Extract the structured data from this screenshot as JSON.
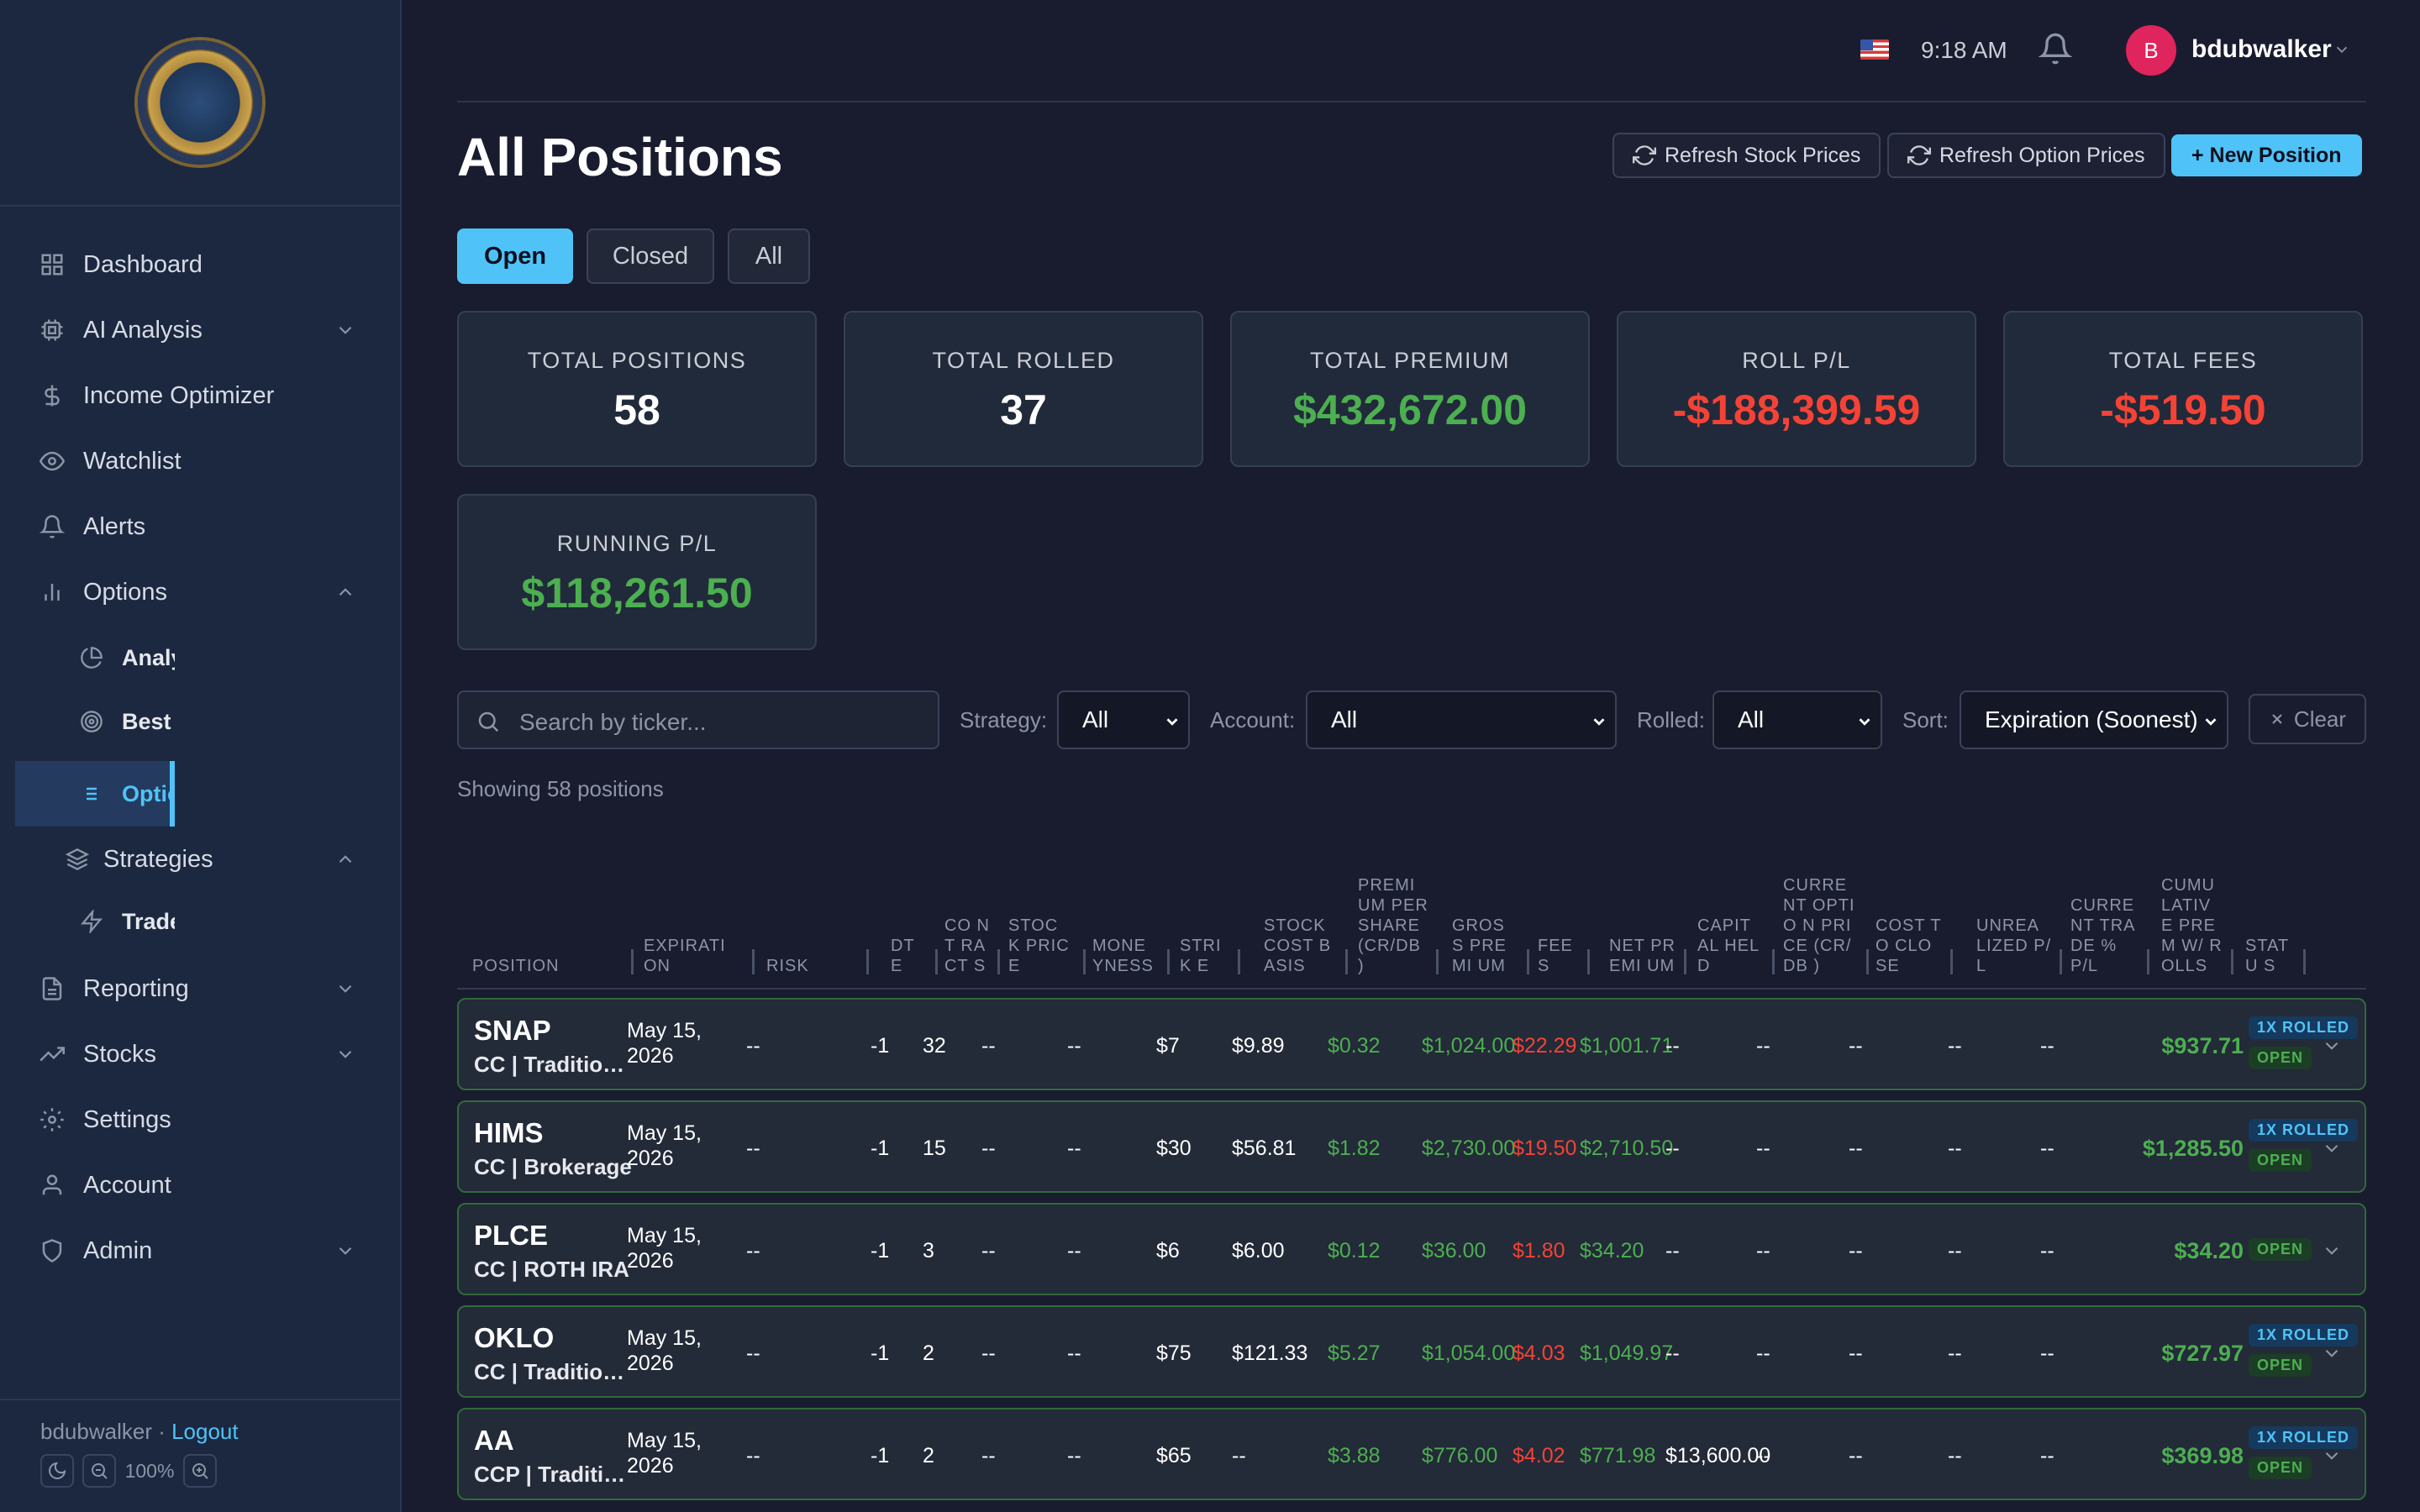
{
  "user": {
    "name": "bdubwalker",
    "initial": "B",
    "time": "9:18 AM"
  },
  "sidebar": {
    "items": [
      {
        "label": "Dashboard"
      },
      {
        "label": "AI Analysis"
      },
      {
        "label": "Income Optimizer"
      },
      {
        "label": "Watchlist"
      },
      {
        "label": "Alerts"
      },
      {
        "label": "Options"
      },
      {
        "label": "Analytics"
      },
      {
        "label": "Best Scenario"
      },
      {
        "label": "Options Positions"
      },
      {
        "label": "Strategies"
      },
      {
        "label": "Trade Actions"
      },
      {
        "label": "Reporting"
      },
      {
        "label": "Stocks"
      },
      {
        "label": "Settings"
      },
      {
        "label": "Account"
      },
      {
        "label": "Admin"
      }
    ],
    "footer": {
      "user": "bdubwalker ·",
      "logout": "Logout",
      "zoom": "100%"
    }
  },
  "page": {
    "title": "All Positions",
    "buttons": {
      "refresh_stock": "Refresh Stock Prices",
      "refresh_option": "Refresh Option Prices",
      "new_position": "+ New Position"
    },
    "tabs": [
      "Open",
      "Closed",
      "All"
    ]
  },
  "stats": [
    {
      "label": "TOTAL POSITIONS",
      "value": "58",
      "tone": "neutral"
    },
    {
      "label": "TOTAL ROLLED",
      "value": "37",
      "tone": "neutral"
    },
    {
      "label": "TOTAL PREMIUM",
      "value": "$432,672.00",
      "tone": "positive"
    },
    {
      "label": "ROLL P/L",
      "value": "-$188,399.59",
      "tone": "negative"
    },
    {
      "label": "TOTAL FEES",
      "value": "-$519.50",
      "tone": "negative"
    },
    {
      "label": "RUNNING P/L",
      "value": "$118,261.50",
      "tone": "positive"
    }
  ],
  "filters": {
    "search_placeholder": "Search by ticker...",
    "strategy_label": "Strategy:",
    "strategy_value": "All",
    "account_label": "Account:",
    "account_value": "All",
    "rolled_label": "Rolled:",
    "rolled_value": "All",
    "sort_label": "Sort:",
    "sort_value": "Expiration (Soonest)",
    "clear": "Clear"
  },
  "showing": "Showing 58 positions",
  "table": {
    "headers": [
      "POSITION",
      "EXPIRATI ON",
      "RISK",
      "DT E",
      "CO NT RA CT S",
      "STOC K PRICE",
      "MONE YNESS",
      "STRIK E",
      "STOCK COST BASIS",
      "PREMI UM PER SHARE (CR/DB )",
      "GROS S PREMI UM",
      "FEE S",
      "NET PREMI UM",
      "CAPIT AL HELD",
      "CURRE NT OPTIO N PRICE (CR/DB )",
      "COST TO CLOSE",
      "UNREA LIZED P/L",
      "CURRE NT TRADE % P/L",
      "CUMU LATIV E PREM W/ ROLLS",
      "STATU S"
    ],
    "rows": [
      {
        "ticker": "SNAP",
        "sub": "CC | Traditional IRA",
        "expiration": "May 15, 2026",
        "risk": "--",
        "dte": "-1",
        "contracts": "32",
        "stock_price": "--",
        "moneyness": "--",
        "strike": "$7",
        "cost_basis": "$9.89",
        "prem_per_share": "$0.32",
        "gross": "$1,024.00",
        "fees": "$22.29",
        "net": "$1,001.71",
        "capital": "--",
        "cur_opt": "--",
        "cost_close": "--",
        "unreal": "--",
        "trade_pct": "--",
        "cumulative": "$937.71",
        "rolled": "1X ROLLED",
        "status": "OPEN"
      },
      {
        "ticker": "HIMS",
        "sub": "CC | Brokerage",
        "expiration": "May 15, 2026",
        "risk": "--",
        "dte": "-1",
        "contracts": "15",
        "stock_price": "--",
        "moneyness": "--",
        "strike": "$30",
        "cost_basis": "$56.81",
        "prem_per_share": "$1.82",
        "gross": "$2,730.00",
        "fees": "$19.50",
        "net": "$2,710.50",
        "capital": "--",
        "cur_opt": "--",
        "cost_close": "--",
        "unreal": "--",
        "trade_pct": "--",
        "cumulative": "$1,285.50",
        "rolled": "1X ROLLED",
        "status": "OPEN"
      },
      {
        "ticker": "PLCE",
        "sub": "CC | ROTH IRA",
        "expiration": "May 15, 2026",
        "risk": "--",
        "dte": "-1",
        "contracts": "3",
        "stock_price": "--",
        "moneyness": "--",
        "strike": "$6",
        "cost_basis": "$6.00",
        "prem_per_share": "$0.12",
        "gross": "$36.00",
        "fees": "$1.80",
        "net": "$34.20",
        "capital": "--",
        "cur_opt": "--",
        "cost_close": "--",
        "unreal": "--",
        "trade_pct": "--",
        "cumulative": "$34.20",
        "rolled": "",
        "status": "OPEN"
      },
      {
        "ticker": "OKLO",
        "sub": "CC | Traditional IRA",
        "expiration": "May 15, 2026",
        "risk": "--",
        "dte": "-1",
        "contracts": "2",
        "stock_price": "--",
        "moneyness": "--",
        "strike": "$75",
        "cost_basis": "$121.33",
        "prem_per_share": "$5.27",
        "gross": "$1,054.00",
        "fees": "$4.03",
        "net": "$1,049.97",
        "capital": "--",
        "cur_opt": "--",
        "cost_close": "--",
        "unreal": "--",
        "trade_pct": "--",
        "cumulative": "$727.97",
        "rolled": "1X ROLLED",
        "status": "OPEN"
      },
      {
        "ticker": "AA",
        "sub": "CCP | Traditional IRA",
        "expiration": "May 15, 2026",
        "risk": "--",
        "dte": "-1",
        "contracts": "2",
        "stock_price": "--",
        "moneyness": "--",
        "strike": "$65",
        "cost_basis": "--",
        "prem_per_share": "$3.88",
        "gross": "$776.00",
        "fees": "$4.02",
        "net": "$771.98",
        "capital": "$13,600.00",
        "cur_opt": "--",
        "cost_close": "--",
        "unreal": "--",
        "trade_pct": "--",
        "cumulative": "$369.98",
        "rolled": "1X ROLLED",
        "status": "OPEN"
      }
    ]
  },
  "colors": {
    "accent": "#4fc3f7",
    "positive": "#4caf50",
    "negative": "#f44336"
  }
}
